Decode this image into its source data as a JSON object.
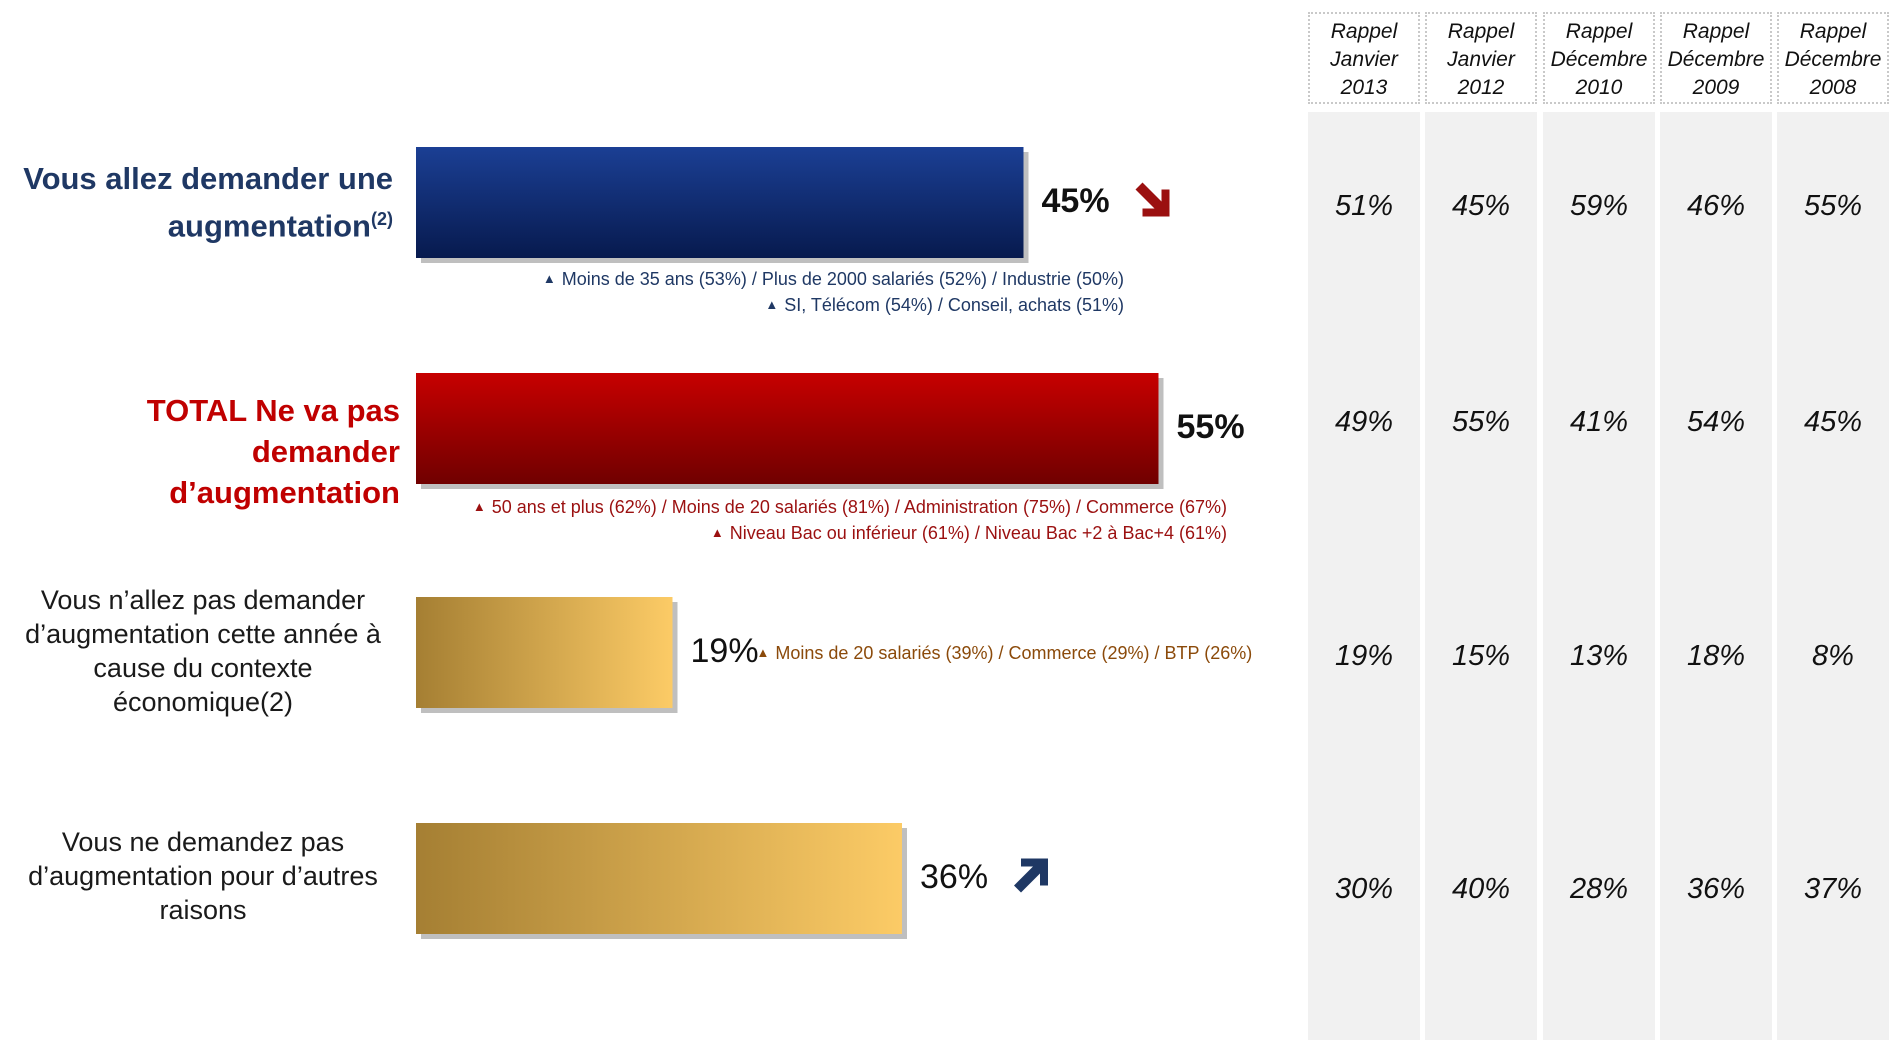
{
  "chart_data": {
    "type": "bar",
    "orientation": "horizontal",
    "xlim": [
      0,
      100
    ],
    "categories": [
      {
        "label_lines": [
          "Vous allez demander une",
          "augmentation"
        ],
        "label_sup": "(2)",
        "value": 45,
        "value_label": "45%",
        "trend": "down",
        "notes": [
          "Moins de 35 ans (53%) / Plus de 2000 salariés (52%) / Industrie (50%)",
          "SI, Télécom (54%) / Conseil, achats (51%)"
        ]
      },
      {
        "label_lines": [
          "TOTAL Ne va pas demander",
          "d’augmentation"
        ],
        "label_sup": "",
        "value": 55,
        "value_label": "55%",
        "trend": "",
        "notes": [
          "50 ans et plus (62%) / Moins de 20 salariés (81%) / Administration (75%) / Commerce (67%)",
          "Niveau Bac ou inférieur (61%) / Niveau Bac +2 à Bac+4 (61%)"
        ]
      },
      {
        "label_lines": [
          "Vous n’allez pas demander",
          "d’augmentation cette année à",
          "cause du contexte",
          "économique(2)"
        ],
        "label_sup": "",
        "value": 19,
        "value_label": "19%",
        "trend": "",
        "notes": [
          "Moins de 20 salariés (39%) / Commerce (29%) / BTP (26%)"
        ]
      },
      {
        "label_lines": [
          "Vous ne demandez pas",
          "d’augmentation pour d’autres",
          "raisons"
        ],
        "label_sup": "",
        "value": 36,
        "value_label": "36%",
        "trend": "up",
        "notes": []
      }
    ],
    "history": {
      "columns": [
        {
          "lines": [
            "Rappel",
            "Janvier",
            "2013"
          ],
          "values": [
            "51%",
            "49%",
            "19%",
            "30%"
          ]
        },
        {
          "lines": [
            "Rappel",
            "Janvier",
            "2012"
          ],
          "values": [
            "45%",
            "55%",
            "15%",
            "40%"
          ]
        },
        {
          "lines": [
            "Rappel",
            "Décembre",
            "2010"
          ],
          "values": [
            "59%",
            "41%",
            "13%",
            "28%"
          ]
        },
        {
          "lines": [
            "Rappel",
            "Décembre",
            "2009"
          ],
          "values": [
            "46%",
            "54%",
            "18%",
            "36%"
          ]
        },
        {
          "lines": [
            "Rappel",
            "Décembre",
            "2008"
          ],
          "values": [
            "55%",
            "45%",
            "8%",
            "37%"
          ]
        }
      ]
    }
  },
  "colors": {
    "blue_top": "#1b3f94",
    "blue_bottom": "#071a4e",
    "red_top": "#c70000",
    "red_bottom": "#700000",
    "gold_left": "#a57f33",
    "gold_right": "#fccb66",
    "label_blue": "#1f3864",
    "label_red": "#c00000",
    "note_blue": "#1f3864",
    "note_red": "#9b1010",
    "note_brown": "#8b4a0a",
    "arrow_down": "#9b1010",
    "arrow_up": "#1f3864"
  },
  "icons": [
    "triangle-up-icon",
    "arrow-down-right-icon",
    "arrow-up-right-icon"
  ]
}
